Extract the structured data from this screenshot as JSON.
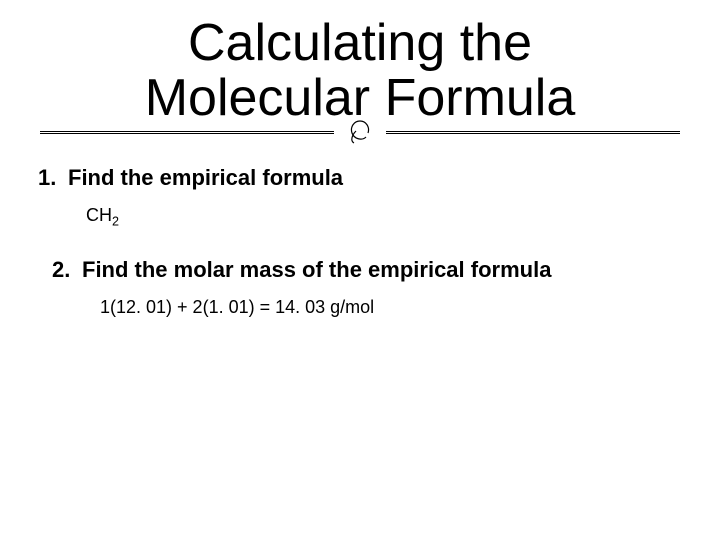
{
  "title_line1": "Calculating the",
  "title_line2": "Molecular Formula",
  "title_fontsize": 52,
  "title_color": "#000000",
  "background_color": "#ffffff",
  "divider": {
    "line_color": "#000000",
    "flourish_glyph": "❧",
    "flourish_color": "#000000"
  },
  "steps": [
    {
      "number": "1.",
      "heading": "Find the empirical formula",
      "detail_html": "CH<sub>2</sub>",
      "detail_plain": "CH2",
      "heading_fontsize": 22,
      "detail_fontsize": 18
    },
    {
      "number": "2.",
      "heading": "Find the molar mass of the empirical formula",
      "detail_html": "1(12. 01) + 2(1. 01) = 14. 03 g/mol",
      "detail_plain": "1(12. 01) + 2(1. 01) = 14. 03 g/mol",
      "heading_fontsize": 22,
      "detail_fontsize": 18
    }
  ]
}
